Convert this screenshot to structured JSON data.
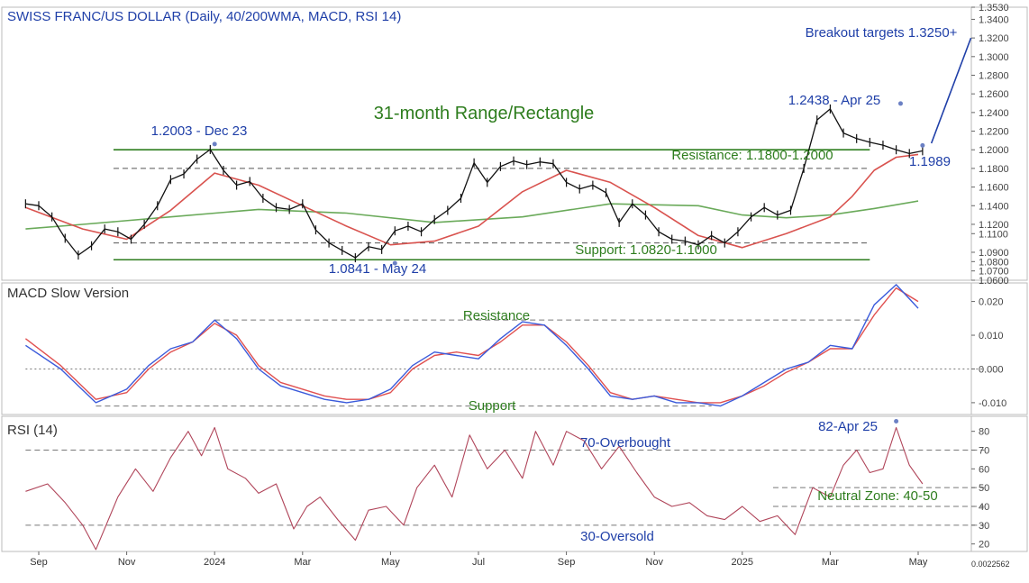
{
  "title": "SWISS FRANC/US DOLLAR (Daily, 40/200WMA, MACD, RSI 14)",
  "footer_value": "0.0022562",
  "colors": {
    "title": "#1f3fa8",
    "price_bar": "#111111",
    "ma_fast": "#d9534f",
    "ma_slow": "#6aaa5a",
    "range_line": "#2e7d1e",
    "annotation_blue": "#1f3fa8",
    "annotation_green": "#2e7d1e",
    "macd_line": "#3b5bdb",
    "macd_signal": "#e05050",
    "rsi_line": "#b0455a",
    "grid_dash": "#777777"
  },
  "chart_data": [
    {
      "type": "line",
      "panel": "price",
      "title": "SWISS FRANC/US DOLLAR (Daily, 40/200WMA, MACD, RSI 14)",
      "x_ticks": [
        "Sep",
        "Nov",
        "2024",
        "Mar",
        "May",
        "Jul",
        "Sep",
        "Nov",
        "2025",
        "Mar",
        "May"
      ],
      "y_ticks": [
        1.353,
        1.34,
        1.32,
        1.3,
        1.28,
        1.26,
        1.24,
        1.22,
        1.2,
        1.18,
        1.16,
        1.14,
        1.12,
        1.11,
        1.09,
        1.08,
        1.07,
        1.06
      ],
      "ylim": [
        1.06,
        1.353
      ],
      "x_months": [
        0,
        2,
        4,
        6,
        8,
        10,
        12,
        14,
        16,
        18,
        20
      ],
      "series": [
        {
          "role": "price",
          "x": [
            -0.3,
            0,
            0.3,
            0.6,
            0.9,
            1.2,
            1.5,
            1.8,
            2.1,
            2.4,
            2.7,
            3.0,
            3.3,
            3.6,
            3.9,
            4.2,
            4.5,
            4.8,
            5.1,
            5.4,
            5.7,
            6.0,
            6.3,
            6.6,
            6.9,
            7.2,
            7.5,
            7.8,
            8.1,
            8.4,
            8.7,
            9.0,
            9.3,
            9.6,
            9.9,
            10.2,
            10.5,
            10.8,
            11.1,
            11.4,
            11.7,
            12.0,
            12.3,
            12.6,
            12.9,
            13.2,
            13.5,
            13.8,
            14.1,
            14.4,
            14.7,
            15.0,
            15.3,
            15.6,
            15.9,
            16.2,
            16.5,
            16.8,
            17.1,
            17.4,
            17.7,
            18.0,
            18.3,
            18.6,
            18.9,
            19.2,
            19.5,
            19.8,
            20.1
          ],
          "y": [
            1.142,
            1.14,
            1.128,
            1.105,
            1.087,
            1.097,
            1.115,
            1.112,
            1.104,
            1.12,
            1.14,
            1.168,
            1.174,
            1.19,
            1.2003,
            1.178,
            1.162,
            1.166,
            1.148,
            1.138,
            1.136,
            1.142,
            1.114,
            1.1,
            1.092,
            1.0841,
            1.096,
            1.093,
            1.113,
            1.118,
            1.112,
            1.125,
            1.135,
            1.148,
            1.186,
            1.165,
            1.182,
            1.188,
            1.184,
            1.187,
            1.185,
            1.165,
            1.158,
            1.162,
            1.154,
            1.122,
            1.142,
            1.13,
            1.112,
            1.104,
            1.102,
            1.098,
            1.108,
            1.1,
            1.112,
            1.128,
            1.138,
            1.13,
            1.135,
            1.18,
            1.232,
            1.2438,
            1.218,
            1.212,
            1.208,
            1.205,
            1.2,
            1.196,
            1.1989
          ]
        },
        {
          "role": "40-week moving average",
          "x": [
            -0.3,
            1,
            2,
            3,
            4,
            5,
            6,
            7,
            8,
            9,
            10,
            11,
            12,
            13,
            14,
            15,
            16,
            17,
            18,
            18.5,
            19,
            19.5,
            20
          ],
          "y": [
            1.138,
            1.115,
            1.104,
            1.135,
            1.175,
            1.162,
            1.14,
            1.118,
            1.098,
            1.102,
            1.118,
            1.155,
            1.178,
            1.165,
            1.138,
            1.108,
            1.095,
            1.11,
            1.128,
            1.15,
            1.178,
            1.192,
            1.195
          ]
        },
        {
          "role": "200-week moving average",
          "x": [
            -0.3,
            1,
            3,
            5,
            7,
            9,
            11,
            13,
            15,
            16,
            17,
            18,
            19,
            20
          ],
          "y": [
            1.115,
            1.12,
            1.128,
            1.136,
            1.132,
            1.122,
            1.128,
            1.142,
            1.14,
            1.13,
            1.127,
            1.13,
            1.137,
            1.145
          ]
        }
      ],
      "levels": [
        {
          "name": "range-top",
          "y": 1.2,
          "x0": 1.7,
          "x1": 18.9,
          "style": "solid"
        },
        {
          "name": "range-bottom",
          "y": 1.082,
          "x0": 1.7,
          "x1": 18.9,
          "style": "solid"
        },
        {
          "name": "resistance-dash",
          "y": 1.18,
          "x0": 1.7,
          "x1": 18.9,
          "style": "dashed"
        },
        {
          "name": "support-dash",
          "y": 1.1,
          "x0": 1.7,
          "x1": 18.9,
          "style": "dashed"
        }
      ],
      "annotations": {
        "range_label": "31-month Range/Rectangle",
        "resistance_label": "Resistance: 1.1800-1.2000",
        "support_label": "Support: 1.0820-1.1000",
        "high_dec23": "1.2003 - Dec 23",
        "low_may24": "1.0841 - May 24",
        "high_apr25": "1.2438 - Apr 25",
        "last_value": "1.1989",
        "breakout": "Breakout targets 1.3250+"
      },
      "breakout_arrow": {
        "from": [
          20.3,
          1.207
        ],
        "to": [
          21.2,
          1.32
        ]
      }
    },
    {
      "type": "line",
      "panel": "macd",
      "title": "MACD Slow Version",
      "y_ticks": [
        0.02,
        0.01,
        0.0,
        -0.01
      ],
      "ylim": [
        -0.0135,
        0.0255
      ],
      "series": [
        {
          "name": "MACD",
          "x": [
            -0.3,
            0.5,
            1.3,
            2,
            2.5,
            3,
            3.5,
            4,
            4.5,
            5,
            5.5,
            6,
            6.5,
            7,
            7.5,
            8,
            8.5,
            9,
            9.5,
            10,
            10.5,
            11,
            11.5,
            12,
            12.5,
            13,
            13.5,
            14,
            14.5,
            15,
            15.5,
            16,
            16.5,
            17,
            17.5,
            18,
            18.5,
            19,
            19.5,
            20
          ],
          "y": [
            0.007,
            0.0,
            -0.01,
            -0.006,
            0.001,
            0.006,
            0.008,
            0.0145,
            0.009,
            0.0,
            -0.005,
            -0.007,
            -0.009,
            -0.01,
            -0.009,
            -0.006,
            0.001,
            0.005,
            0.004,
            0.003,
            0.009,
            0.014,
            0.013,
            0.007,
            0.0,
            -0.008,
            -0.009,
            -0.008,
            -0.01,
            -0.01,
            -0.011,
            -0.008,
            -0.004,
            0.0,
            0.002,
            0.007,
            0.006,
            0.019,
            0.025,
            0.018
          ]
        },
        {
          "name": "Signal",
          "x": [
            -0.3,
            0.5,
            1.3,
            2,
            2.5,
            3,
            3.5,
            4,
            4.5,
            5,
            5.5,
            6,
            6.5,
            7,
            7.5,
            8,
            8.5,
            9,
            9.5,
            10,
            10.5,
            11,
            11.5,
            12,
            12.5,
            13,
            13.5,
            14,
            14.5,
            15,
            15.5,
            16,
            16.5,
            17,
            17.5,
            18,
            18.5,
            19,
            19.5,
            20
          ],
          "y": [
            0.009,
            0.001,
            -0.009,
            -0.007,
            0.0,
            0.005,
            0.008,
            0.0135,
            0.01,
            0.001,
            -0.004,
            -0.006,
            -0.008,
            -0.009,
            -0.009,
            -0.007,
            0.0,
            0.004,
            0.005,
            0.004,
            0.008,
            0.013,
            0.013,
            0.008,
            0.001,
            -0.007,
            -0.009,
            -0.008,
            -0.009,
            -0.01,
            -0.01,
            -0.008,
            -0.005,
            -0.001,
            0.002,
            0.006,
            0.006,
            0.016,
            0.024,
            0.02
          ]
        }
      ],
      "levels": [
        {
          "name": "macd-resistance",
          "y": 0.0145,
          "x0": 4,
          "x1": 18.9,
          "style": "dashed"
        },
        {
          "name": "macd-zero",
          "y": 0.0,
          "x0": -0.3,
          "x1": 21.5,
          "style": "dotted"
        },
        {
          "name": "macd-support",
          "y": -0.011,
          "x0": 1.3,
          "x1": 15.3,
          "style": "dashed"
        }
      ],
      "annotations": {
        "resistance_label": "Resistance",
        "support_label": "Support"
      }
    },
    {
      "type": "line",
      "panel": "rsi",
      "title": "RSI (14)",
      "y_ticks": [
        80,
        70,
        60,
        50,
        40,
        30,
        20
      ],
      "ylim": [
        16,
        88
      ],
      "series": [
        {
          "name": "RSI (14)",
          "x": [
            -0.3,
            0.2,
            0.6,
            1.0,
            1.3,
            1.8,
            2.2,
            2.6,
            3.0,
            3.4,
            3.7,
            4.0,
            4.3,
            4.7,
            5.0,
            5.4,
            5.8,
            6.1,
            6.4,
            6.8,
            7.2,
            7.5,
            7.9,
            8.3,
            8.6,
            9.0,
            9.4,
            9.8,
            10.2,
            10.6,
            11.0,
            11.3,
            11.7,
            12.0,
            12.4,
            12.8,
            13.2,
            13.6,
            14.0,
            14.4,
            14.8,
            15.2,
            15.6,
            16.0,
            16.4,
            16.8,
            17.2,
            17.6,
            18.0,
            18.3,
            18.6,
            18.9,
            19.2,
            19.5,
            19.8,
            20.1
          ],
          "y": [
            48,
            52,
            42,
            30,
            17,
            45,
            60,
            48,
            66,
            80,
            67,
            82,
            60,
            55,
            47,
            52,
            28,
            40,
            45,
            33,
            22,
            38,
            40,
            30,
            50,
            62,
            45,
            78,
            60,
            70,
            55,
            80,
            62,
            80,
            75,
            60,
            72,
            58,
            45,
            40,
            42,
            35,
            33,
            40,
            32,
            35,
            25,
            50,
            45,
            62,
            70,
            58,
            60,
            82,
            62,
            52
          ]
        }
      ],
      "levels": [
        {
          "name": "rsi-70",
          "y": 70,
          "x0": -0.3,
          "x1": 21.5,
          "style": "dashed"
        },
        {
          "name": "rsi-50",
          "y": 50,
          "x0": 16.7,
          "x1": 21.5,
          "style": "dashed"
        },
        {
          "name": "rsi-40",
          "y": 40,
          "x0": 16.7,
          "x1": 21.5,
          "style": "dashed"
        },
        {
          "name": "rsi-30",
          "y": 30,
          "x0": -0.3,
          "x1": 21.5,
          "style": "dashed"
        }
      ],
      "annotations": {
        "overbought_label": "70-Overbought",
        "oversold_label": "30-Oversold",
        "peak_label": "82-Apr 25",
        "neutral_label": "Neutral Zone: 40-50"
      }
    }
  ]
}
